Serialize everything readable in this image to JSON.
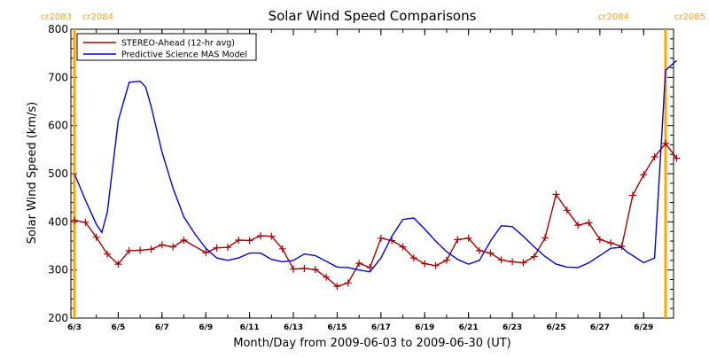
{
  "chart_data": {
    "type": "line",
    "title": "Solar Wind Speed Comparisons",
    "xlabel": "Month/Day from 2009-06-03 to 2009-06-30 (UT)",
    "ylabel": "Solar Wind Speed (km/s)",
    "xlim": [
      "2009-06-03",
      "2009-06-30"
    ],
    "ylim": [
      200,
      800
    ],
    "y_ticks": [
      200,
      300,
      400,
      500,
      600,
      700,
      800
    ],
    "y_tick_labels": [
      "200",
      "300",
      "400",
      "500",
      "600",
      "700",
      "800"
    ],
    "x_ticks": [
      "2009-06-03",
      "2009-06-05",
      "2009-06-07",
      "2009-06-09",
      "2009-06-11",
      "2009-06-13",
      "2009-06-15",
      "2009-06-17",
      "2009-06-19",
      "2009-06-21",
      "2009-06-23",
      "2009-06-25",
      "2009-06-27",
      "2009-06-29"
    ],
    "x_tick_labels": [
      "6/3",
      "6/5",
      "6/7",
      "6/9",
      "6/11",
      "6/13",
      "6/15",
      "6/17",
      "6/19",
      "6/21",
      "6/23",
      "6/25",
      "6/27",
      "6/29"
    ],
    "legend_position": "top-left",
    "carrington_markers": [
      {
        "date": "2009-06-03",
        "left_label": "cr2083",
        "right_label": "cr2084",
        "color": "#FFA500"
      },
      {
        "date": "2009-06-30",
        "left_label": "cr2084",
        "right_label": "cr2085",
        "color": "#FFA500"
      }
    ],
    "series": [
      {
        "name": "STEREO-Ahead (12-hr avg)",
        "color": "#AA0000",
        "marker": "plus",
        "x": [
          "2009-06-03T00:00",
          "2009-06-03T12:00",
          "2009-06-04T00:00",
          "2009-06-04T12:00",
          "2009-06-05T00:00",
          "2009-06-05T12:00",
          "2009-06-06T00:00",
          "2009-06-06T12:00",
          "2009-06-07T00:00",
          "2009-06-07T12:00",
          "2009-06-08T00:00",
          "2009-06-09T00:00",
          "2009-06-09T12:00",
          "2009-06-10T00:00",
          "2009-06-10T12:00",
          "2009-06-11T00:00",
          "2009-06-11T12:00",
          "2009-06-12T00:00",
          "2009-06-12T12:00",
          "2009-06-13T00:00",
          "2009-06-13T12:00",
          "2009-06-14T00:00",
          "2009-06-14T12:00",
          "2009-06-15T00:00",
          "2009-06-15T12:00",
          "2009-06-16T00:00",
          "2009-06-16T12:00",
          "2009-06-17T00:00",
          "2009-06-17T12:00",
          "2009-06-18T00:00",
          "2009-06-18T12:00",
          "2009-06-19T00:00",
          "2009-06-19T12:00",
          "2009-06-20T00:00",
          "2009-06-20T12:00",
          "2009-06-21T00:00",
          "2009-06-21T12:00",
          "2009-06-22T00:00",
          "2009-06-22T12:00",
          "2009-06-23T00:00",
          "2009-06-23T12:00",
          "2009-06-24T00:00",
          "2009-06-24T12:00",
          "2009-06-25T00:00",
          "2009-06-25T12:00",
          "2009-06-26T00:00",
          "2009-06-26T12:00",
          "2009-06-27T00:00",
          "2009-06-27T12:00",
          "2009-06-28T00:00",
          "2009-06-28T12:00",
          "2009-06-29T00:00",
          "2009-06-29T12:00",
          "2009-06-30T00:00",
          "2009-06-30T12:00"
        ],
        "y": [
          403,
          399,
          368,
          333,
          312,
          340,
          341,
          343,
          352,
          348,
          362,
          336,
          346,
          347,
          362,
          361,
          371,
          370,
          344,
          302,
          303,
          301,
          285,
          266,
          273,
          314,
          305,
          366,
          361,
          348,
          325,
          313,
          309,
          320,
          363,
          366,
          340,
          335,
          321,
          317,
          315,
          328,
          367,
          457,
          424,
          393,
          398,
          363,
          356,
          349,
          455,
          498,
          535,
          563,
          532
        ]
      },
      {
        "name": "Predictive Science MAS Model",
        "color": "#0000DD",
        "marker": "none",
        "x": [
          "2009-06-03T00:00",
          "2009-06-03T12:00",
          "2009-06-04T00:00",
          "2009-06-04T06:00",
          "2009-06-04T12:00",
          "2009-06-05T00:00",
          "2009-06-05T12:00",
          "2009-06-06T00:00",
          "2009-06-06T06:00",
          "2009-06-06T12:00",
          "2009-06-07T00:00",
          "2009-06-07T12:00",
          "2009-06-08T00:00",
          "2009-06-08T12:00",
          "2009-06-09T00:00",
          "2009-06-09T12:00",
          "2009-06-10T00:00",
          "2009-06-10T12:00",
          "2009-06-11T00:00",
          "2009-06-11T12:00",
          "2009-06-12T00:00",
          "2009-06-12T12:00",
          "2009-06-13T00:00",
          "2009-06-13T12:00",
          "2009-06-14T00:00",
          "2009-06-14T12:00",
          "2009-06-15T00:00",
          "2009-06-15T12:00",
          "2009-06-16T00:00",
          "2009-06-16T12:00",
          "2009-06-17T00:00",
          "2009-06-17T12:00",
          "2009-06-18T00:00",
          "2009-06-18T12:00",
          "2009-06-19T00:00",
          "2009-06-19T12:00",
          "2009-06-20T00:00",
          "2009-06-20T12:00",
          "2009-06-21T00:00",
          "2009-06-21T12:00",
          "2009-06-22T00:00",
          "2009-06-22T12:00",
          "2009-06-23T00:00",
          "2009-06-23T12:00",
          "2009-06-24T00:00",
          "2009-06-24T12:00",
          "2009-06-25T00:00",
          "2009-06-25T12:00",
          "2009-06-26T00:00",
          "2009-06-26T12:00",
          "2009-06-27T00:00",
          "2009-06-27T12:00",
          "2009-06-28T00:00",
          "2009-06-28T06:00",
          "2009-06-28T12:00",
          "2009-06-29T00:00",
          "2009-06-29T12:00",
          "2009-06-30T00:00",
          "2009-06-30T12:00"
        ],
        "y": [
          500,
          445,
          395,
          378,
          420,
          610,
          690,
          692,
          680,
          640,
          545,
          470,
          410,
          375,
          345,
          325,
          320,
          325,
          335,
          335,
          322,
          317,
          320,
          333,
          330,
          318,
          306,
          305,
          300,
          296,
          325,
          370,
          405,
          408,
          385,
          360,
          338,
          322,
          312,
          320,
          360,
          392,
          390,
          370,
          348,
          328,
          312,
          306,
          305,
          315,
          330,
          345,
          347,
          337,
          330,
          315,
          325,
          715,
          735
        ]
      }
    ]
  }
}
